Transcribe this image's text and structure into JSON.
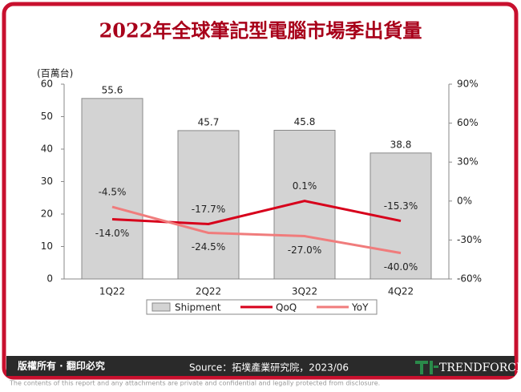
{
  "chart_data": {
    "type": "bar",
    "title": "2022年全球筆記型電腦市場季出貨量",
    "y_label": "(百萬台)",
    "categories": [
      "1Q22",
      "2Q22",
      "3Q22",
      "4Q22"
    ],
    "series": [
      {
        "name": "Shipment",
        "type": "bar",
        "color": "#d3d3d3",
        "values": [
          55.6,
          45.7,
          45.8,
          38.8
        ]
      },
      {
        "name": "QoQ",
        "type": "line",
        "axis": "y2",
        "color": "#d7001b",
        "values": [
          -14.0,
          -17.7,
          0.1,
          -15.3
        ],
        "value_labels": [
          "-14.0%",
          "-17.7%",
          "0.1%",
          "-15.3%"
        ]
      },
      {
        "name": "YoY",
        "type": "line",
        "axis": "y2",
        "color": "#f07c7c",
        "values": [
          -4.5,
          -24.5,
          -27.0,
          -40.0
        ],
        "value_labels": [
          "-4.5%",
          "-24.5%",
          "-27.0%",
          "-40.0%"
        ]
      }
    ],
    "ylim": [
      0,
      60
    ],
    "yticks": [
      0,
      10,
      20,
      30,
      40,
      50,
      60
    ],
    "y2lim": [
      -60,
      90
    ],
    "y2ticks": [
      {
        "value": -60,
        "label": "-60%"
      },
      {
        "value": -30,
        "label": "-30%"
      },
      {
        "value": 0,
        "label": "0%"
      },
      {
        "value": 30,
        "label": "30%"
      },
      {
        "value": 60,
        "label": "60%"
      },
      {
        "value": 90,
        "label": "90%"
      }
    ],
    "grid": false,
    "legend": "bottom"
  },
  "footer": {
    "copyright": "版權所有 · 翻印必究",
    "source": "Source：拓墣產業研究院，2023/06",
    "logo": "TRENDFORCE",
    "disclaimer": "The contents of this report and any attachments are private and confidential and legally protected from disclosure."
  }
}
